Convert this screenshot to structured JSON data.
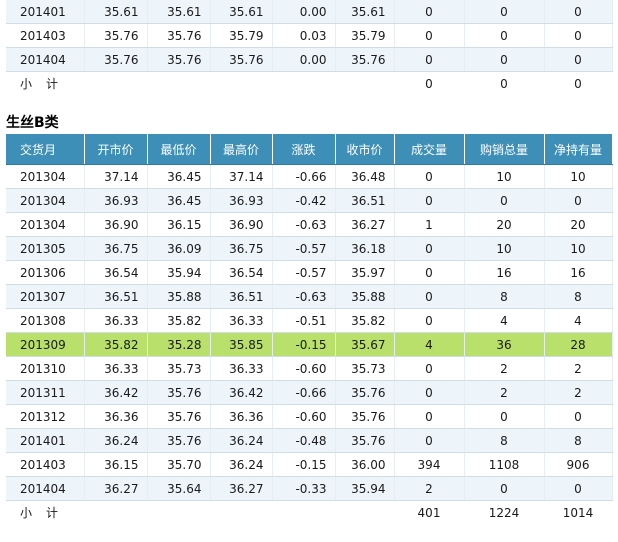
{
  "top_table": {
    "rows": [
      [
        "201401",
        "35.61",
        "35.61",
        "35.61",
        "0.00",
        "35.61",
        "0",
        "0",
        "0"
      ],
      [
        "201403",
        "35.76",
        "35.76",
        "35.79",
        "0.03",
        "35.79",
        "0",
        "0",
        "0"
      ],
      [
        "201404",
        "35.76",
        "35.76",
        "35.76",
        "0.00",
        "35.76",
        "0",
        "0",
        "0"
      ]
    ],
    "subtotal": {
      "label": "小计",
      "volume": "0",
      "sales": "0",
      "net": "0"
    }
  },
  "section_title": "生丝B类",
  "main_table": {
    "headers": [
      "交货月",
      "开市价",
      "最低价",
      "最高价",
      "涨跌",
      "收市价",
      "成交量",
      "购销总量",
      "净持有量"
    ],
    "rows": [
      [
        "201304",
        "37.14",
        "36.45",
        "37.14",
        "-0.66",
        "36.48",
        "0",
        "10",
        "10"
      ],
      [
        "201304",
        "36.93",
        "36.45",
        "36.93",
        "-0.42",
        "36.51",
        "0",
        "0",
        "0"
      ],
      [
        "201304",
        "36.90",
        "36.15",
        "36.90",
        "-0.63",
        "36.27",
        "1",
        "20",
        "20"
      ],
      [
        "201305",
        "36.75",
        "36.09",
        "36.75",
        "-0.57",
        "36.18",
        "0",
        "10",
        "10"
      ],
      [
        "201306",
        "36.54",
        "35.94",
        "36.54",
        "-0.57",
        "35.97",
        "0",
        "16",
        "16"
      ],
      [
        "201307",
        "36.51",
        "35.88",
        "36.51",
        "-0.63",
        "35.88",
        "0",
        "8",
        "8"
      ],
      [
        "201308",
        "36.33",
        "35.82",
        "36.33",
        "-0.51",
        "35.82",
        "0",
        "4",
        "4"
      ],
      [
        "201309",
        "35.82",
        "35.28",
        "35.85",
        "-0.15",
        "35.67",
        "4",
        "36",
        "28"
      ],
      [
        "201310",
        "36.33",
        "35.73",
        "36.33",
        "-0.60",
        "35.73",
        "0",
        "2",
        "2"
      ],
      [
        "201311",
        "36.42",
        "35.76",
        "36.42",
        "-0.66",
        "35.76",
        "0",
        "2",
        "2"
      ],
      [
        "201312",
        "36.36",
        "35.76",
        "36.36",
        "-0.60",
        "35.76",
        "0",
        "0",
        "0"
      ],
      [
        "201401",
        "36.24",
        "35.76",
        "36.24",
        "-0.48",
        "35.76",
        "0",
        "8",
        "8"
      ],
      [
        "201403",
        "36.15",
        "35.70",
        "36.24",
        "-0.15",
        "36.00",
        "394",
        "1108",
        "906"
      ],
      [
        "201404",
        "36.27",
        "35.64",
        "36.27",
        "-0.33",
        "35.94",
        "2",
        "0",
        "0"
      ]
    ],
    "highlight_row": 7,
    "subtotal": {
      "label": "小计",
      "volume": "401",
      "sales": "1224",
      "net": "1014"
    }
  },
  "colors": {
    "header_bg": "#3e8fb8",
    "row_alt": "#eef5fa",
    "highlight": "#b9e06a"
  }
}
